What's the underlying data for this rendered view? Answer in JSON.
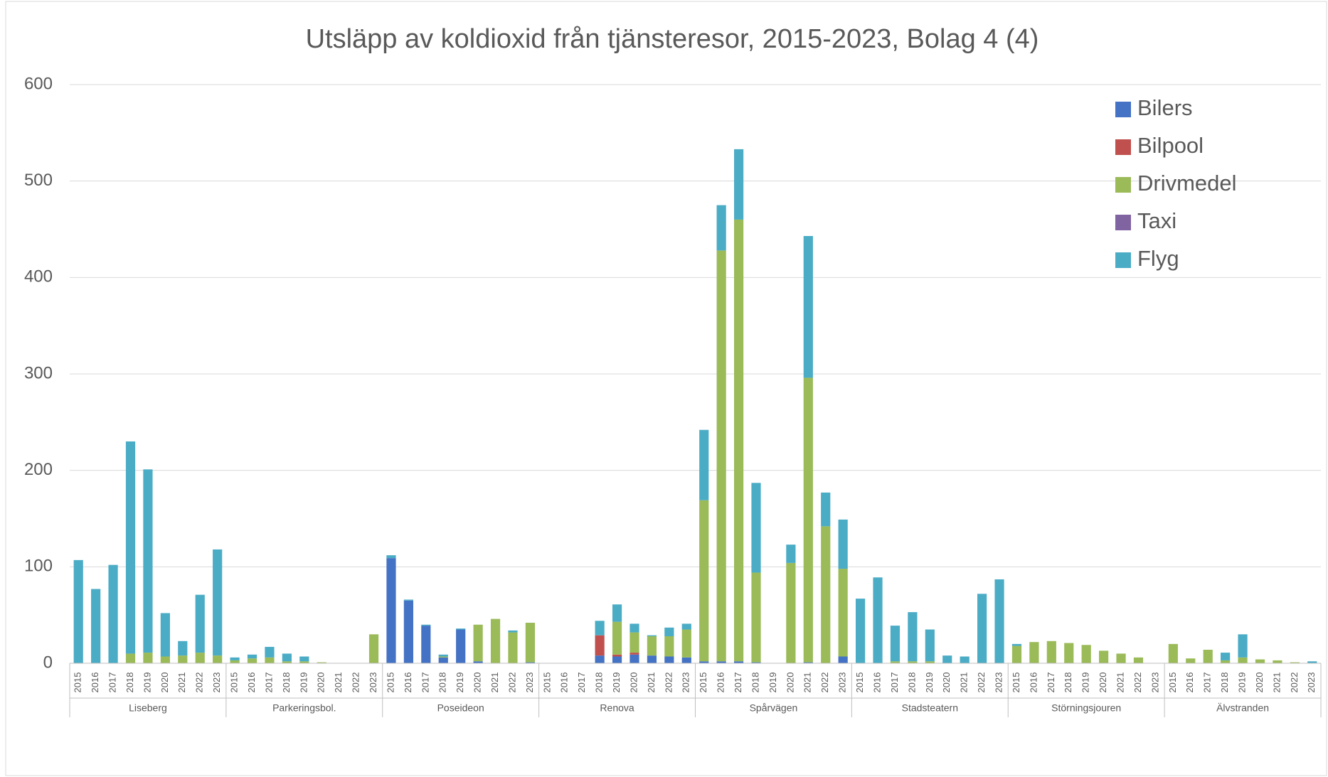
{
  "chart_data": {
    "type": "stacked_bar",
    "title": "Utsläpp av koldioxid från tjänsteresor, 2015-2023, Bolag 4 (4)",
    "groups": [
      "Liseberg",
      "Parkeringsbol.",
      "Poseideon",
      "Renova",
      "Spårvägen",
      "Stadsteatern",
      "Störningsjouren",
      "Älvstranden"
    ],
    "categories": [
      "2015",
      "2016",
      "2017",
      "2018",
      "2019",
      "2020",
      "2021",
      "2022",
      "2023",
      "2015",
      "2016",
      "2017",
      "2018",
      "2019",
      "2020",
      "2021",
      "2022",
      "2023",
      "2015",
      "2016",
      "2017",
      "2018",
      "2019",
      "2020",
      "2021",
      "2022",
      "2023",
      "2015",
      "2016",
      "2017",
      "2018",
      "2019",
      "2020",
      "2021",
      "2022",
      "2023",
      "2015",
      "2016",
      "2017",
      "2018",
      "2019",
      "2020",
      "2021",
      "2022",
      "2023",
      "2015",
      "2016",
      "2017",
      "2018",
      "2019",
      "2020",
      "2021",
      "2022",
      "2023",
      "2015",
      "2016",
      "2017",
      "2018",
      "2019",
      "2020",
      "2021",
      "2022",
      "2023",
      "2015",
      "2016",
      "2017",
      "2018",
      "2019",
      "2020",
      "2021",
      "2022",
      "2023"
    ],
    "series": [
      {
        "name": "Bilers",
        "color": "#4472c4",
        "values": [
          0,
          0,
          0,
          0,
          0,
          0,
          0,
          0,
          0,
          0,
          0,
          0,
          0,
          0,
          0,
          0,
          0,
          0,
          109,
          65,
          39,
          6,
          35,
          2,
          0,
          0,
          1,
          0,
          0,
          0,
          8,
          7,
          9,
          8,
          7,
          6,
          2,
          2,
          2,
          1,
          0,
          0,
          1,
          0,
          7,
          0,
          0,
          0,
          0,
          0,
          0,
          0,
          0,
          0,
          0,
          0,
          0,
          0,
          0,
          0,
          0,
          0,
          0,
          0,
          0,
          0,
          0,
          0,
          0,
          0,
          0,
          0
        ]
      },
      {
        "name": "Bilpool",
        "color": "#c0504d",
        "values": [
          0,
          0,
          0,
          0,
          0,
          0,
          0,
          0,
          0,
          0,
          0,
          0,
          0,
          0,
          0,
          0,
          0,
          0,
          0,
          0,
          0,
          0,
          0,
          0,
          0,
          0,
          0,
          0,
          0,
          0,
          21,
          2,
          2,
          0,
          0,
          0,
          0,
          0,
          0,
          0,
          0,
          0,
          0,
          0,
          0,
          0,
          0,
          0,
          0,
          0,
          0,
          0,
          0,
          0,
          0,
          0,
          0,
          0,
          0,
          0,
          0,
          0,
          0,
          0,
          0,
          0,
          0,
          0,
          0,
          0,
          0,
          0
        ]
      },
      {
        "name": "Drivmedel",
        "color": "#9bbb59",
        "values": [
          0,
          0,
          0,
          10,
          11,
          7,
          8,
          11,
          8,
          3,
          5,
          6,
          2,
          2,
          1,
          0,
          0,
          30,
          0,
          0,
          0,
          1,
          0,
          38,
          46,
          32,
          41,
          0,
          0,
          0,
          0,
          34,
          21,
          20,
          21,
          29,
          167,
          426,
          458,
          93,
          0,
          104,
          295,
          142,
          91,
          0,
          0,
          2,
          2,
          2,
          0,
          0,
          0,
          0,
          18,
          22,
          23,
          21,
          19,
          13,
          10,
          6,
          0,
          20,
          5,
          14,
          3,
          6,
          4,
          3,
          1,
          0
        ]
      },
      {
        "name": "Taxi",
        "color": "#8064a2",
        "values": [
          0,
          0,
          0,
          0,
          0,
          0,
          0,
          0,
          0,
          0,
          0,
          0,
          0,
          0,
          0,
          0,
          0,
          0,
          0,
          0,
          0,
          0,
          0,
          0,
          0,
          0,
          0,
          0,
          0,
          0,
          0,
          0,
          0,
          0,
          0,
          0,
          0,
          0,
          0,
          0,
          0,
          0,
          0,
          0,
          0,
          0,
          0,
          0,
          0,
          0,
          0,
          0,
          0,
          0,
          0,
          0,
          0,
          0,
          0,
          0,
          0,
          0,
          0,
          0,
          0,
          0,
          0,
          0,
          0,
          0,
          0,
          0
        ]
      },
      {
        "name": "Flyg",
        "color": "#4bacc6",
        "values": [
          107,
          77,
          102,
          220,
          190,
          45,
          15,
          60,
          110,
          3,
          4,
          11,
          8,
          5,
          0,
          0,
          0,
          0,
          3,
          1,
          1,
          2,
          1,
          0,
          0,
          2,
          0,
          0,
          0,
          0,
          15,
          18,
          9,
          1,
          9,
          6,
          73,
          47,
          73,
          93,
          0,
          19,
          147,
          35,
          51,
          67,
          89,
          37,
          51,
          33,
          8,
          7,
          72,
          87,
          2,
          0,
          0,
          0,
          0,
          0,
          0,
          0,
          0,
          0,
          0,
          0,
          8,
          24,
          0,
          0,
          0,
          2
        ]
      }
    ],
    "ylim": [
      0,
      600
    ],
    "yticks": [
      0,
      100,
      200,
      300,
      400,
      500,
      600
    ],
    "grid": true,
    "legend": "top-right"
  }
}
